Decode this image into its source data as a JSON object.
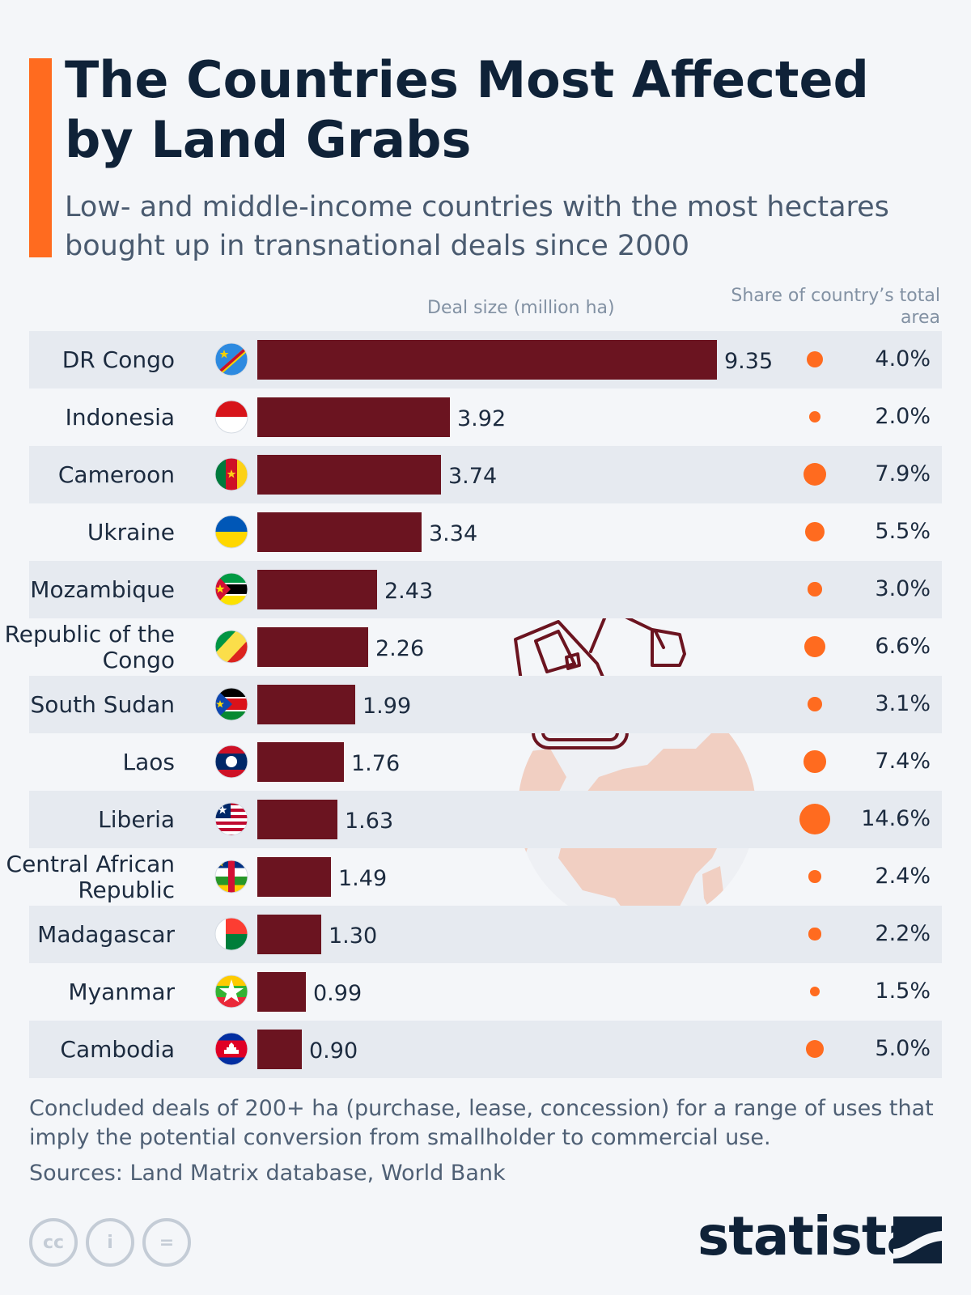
{
  "header": {
    "title": "The Countries Most Affected by Land Grabs",
    "subtitle": "Low- and middle-income countries with the most hectares bought up in transnational deals since 2000"
  },
  "colors": {
    "accent": "#ff6b1f",
    "bar": "#6b1420",
    "dot": "#ff6b1f",
    "row_band": "#e6eaf0"
  },
  "chart_data": {
    "type": "bar",
    "orientation": "horizontal",
    "column_headers": {
      "deal": "Deal size (million ha)",
      "share": "Share of country’s total area"
    },
    "rows": [
      {
        "country": "DR Congo",
        "flag": "dr-congo-flag-icon",
        "deal_size": 9.35,
        "deal_label": "9.35",
        "share": 4.0,
        "share_label": "4.0%"
      },
      {
        "country": "Indonesia",
        "flag": "indonesia-flag-icon",
        "deal_size": 3.92,
        "deal_label": "3.92",
        "share": 2.0,
        "share_label": "2.0%"
      },
      {
        "country": "Cameroon",
        "flag": "cameroon-flag-icon",
        "deal_size": 3.74,
        "deal_label": "3.74",
        "share": 7.9,
        "share_label": "7.9%"
      },
      {
        "country": "Ukraine",
        "flag": "ukraine-flag-icon",
        "deal_size": 3.34,
        "deal_label": "3.34",
        "share": 5.5,
        "share_label": "5.5%"
      },
      {
        "country": "Mozambique",
        "flag": "mozambique-flag-icon",
        "deal_size": 2.43,
        "deal_label": "2.43",
        "share": 3.0,
        "share_label": "3.0%"
      },
      {
        "country": "Republic of the Congo",
        "flag": "republic-of-the-congo-flag-icon",
        "deal_size": 2.26,
        "deal_label": "2.26",
        "share": 6.6,
        "share_label": "6.6%"
      },
      {
        "country": "South Sudan",
        "flag": "south-sudan-flag-icon",
        "deal_size": 1.99,
        "deal_label": "1.99",
        "share": 3.1,
        "share_label": "3.1%"
      },
      {
        "country": "Laos",
        "flag": "laos-flag-icon",
        "deal_size": 1.76,
        "deal_label": "1.76",
        "share": 7.4,
        "share_label": "7.4%"
      },
      {
        "country": "Liberia",
        "flag": "liberia-flag-icon",
        "deal_size": 1.63,
        "deal_label": "1.63",
        "share": 14.6,
        "share_label": "14.6%"
      },
      {
        "country": "Central African Republic",
        "flag": "central-african-republic-flag-icon",
        "deal_size": 1.49,
        "deal_label": "1.49",
        "share": 2.4,
        "share_label": "2.4%"
      },
      {
        "country": "Madagascar",
        "flag": "madagascar-flag-icon",
        "deal_size": 1.3,
        "deal_label": "1.30",
        "share": 2.2,
        "share_label": "2.2%"
      },
      {
        "country": "Myanmar",
        "flag": "myanmar-flag-icon",
        "deal_size": 0.99,
        "deal_label": "0.99",
        "share": 1.5,
        "share_label": "1.5%"
      },
      {
        "country": "Cambodia",
        "flag": "cambodia-flag-icon",
        "deal_size": 0.9,
        "deal_label": "0.90",
        "share": 5.0,
        "share_label": "5.0%"
      }
    ]
  },
  "footer": {
    "note": "Concluded deals of 200+ ha (purchase, lease, concession) for a range of uses that imply the potential conversion from smallholder to commercial use.",
    "sources": "Sources: Land Matrix database, World Bank",
    "license_icons": [
      "creative-commons-icon",
      "attribution-icon",
      "no-derivatives-icon"
    ],
    "license_labels": [
      "cc",
      "i",
      "="
    ],
    "brand": "statista"
  }
}
